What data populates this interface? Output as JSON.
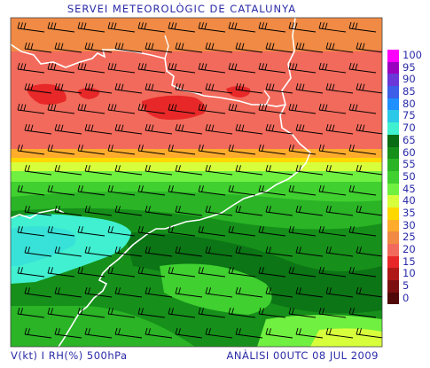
{
  "header": {
    "title": "SERVEI METEOROLÒGIC DE CATALUNYA"
  },
  "footer": {
    "variables": "V(kt) I RH(%) 500hPa",
    "analysis": "ANÀLISI 00UTC 08 JUL 2009"
  },
  "legend": {
    "levels": [
      {
        "label": "100",
        "color": "#ff00ff"
      },
      {
        "label": "95",
        "color": "#9a00c0"
      },
      {
        "label": "90",
        "color": "#6a38d8"
      },
      {
        "label": "85",
        "color": "#3c5ee8"
      },
      {
        "label": "80",
        "color": "#1e90ff"
      },
      {
        "label": "75",
        "color": "#2cc8e8"
      },
      {
        "label": "70",
        "color": "#40f0d0"
      },
      {
        "label": "65",
        "color": "#0a6c14"
      },
      {
        "label": "60",
        "color": "#16901a"
      },
      {
        "label": "55",
        "color": "#2ab426"
      },
      {
        "label": "50",
        "color": "#40d030"
      },
      {
        "label": "45",
        "color": "#70f040"
      },
      {
        "label": "40",
        "color": "#d8ff3c"
      },
      {
        "label": "35",
        "color": "#ffd800"
      },
      {
        "label": "30",
        "color": "#ffac2c"
      },
      {
        "label": "25",
        "color": "#f08a44"
      },
      {
        "label": "20",
        "color": "#f26a5c"
      },
      {
        "label": "15",
        "color": "#e82828"
      },
      {
        "label": "10",
        "color": "#b01818"
      },
      {
        "label": "5",
        "color": "#7c1010"
      },
      {
        "label": "0",
        "color": "#500808"
      }
    ]
  }
}
